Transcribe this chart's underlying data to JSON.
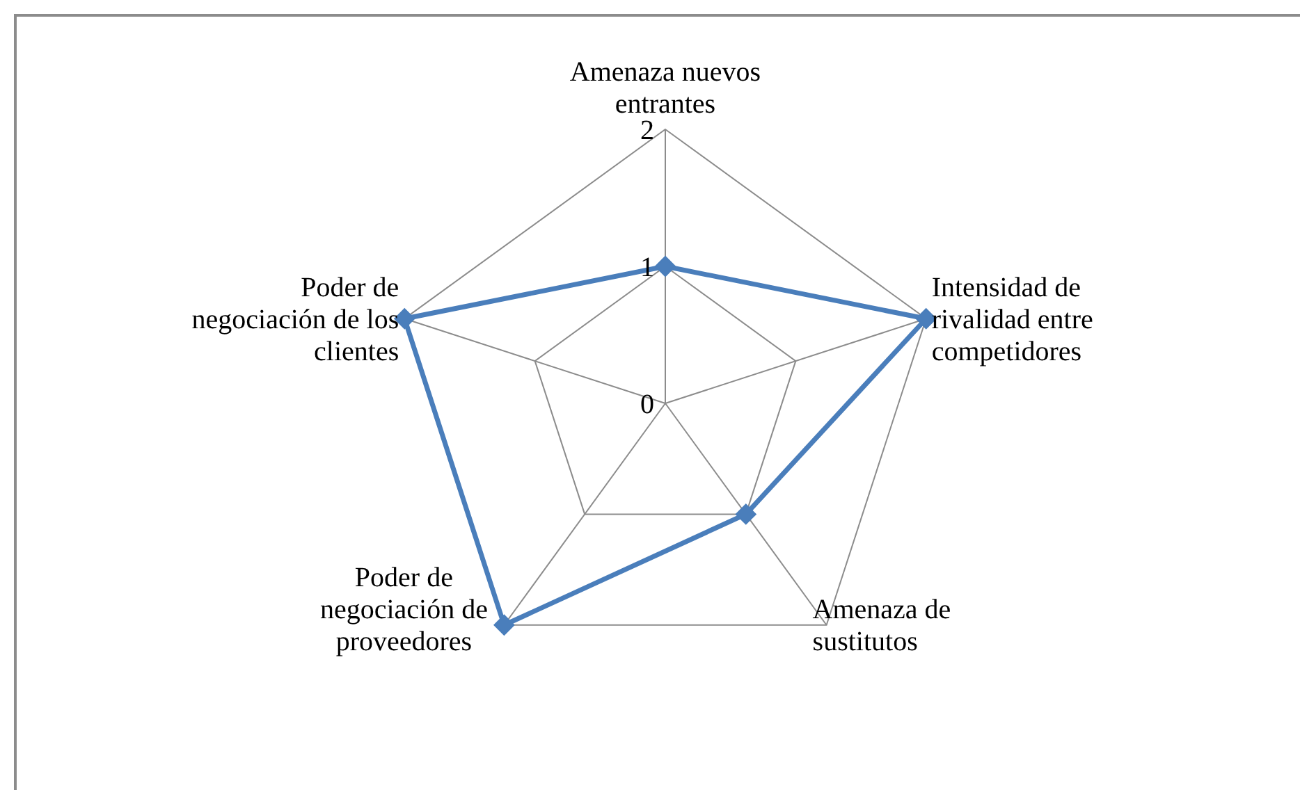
{
  "chart_data": {
    "type": "radar",
    "categories": [
      "Amenaza nuevos entrantes",
      "Intensidad de rivalidad entre competidores",
      "Amenaza de sustitutos",
      "Poder de negociación de proveedores",
      "Poder de negociación de los clientes"
    ],
    "series": [
      {
        "color": "#4a7ebb",
        "values": [
          1,
          2,
          1,
          2,
          2
        ]
      }
    ],
    "ylim": [
      0,
      2
    ],
    "yticks": [
      0,
      1,
      2
    ],
    "grid": true,
    "marker": "diamond",
    "line_style": "solid"
  }
}
